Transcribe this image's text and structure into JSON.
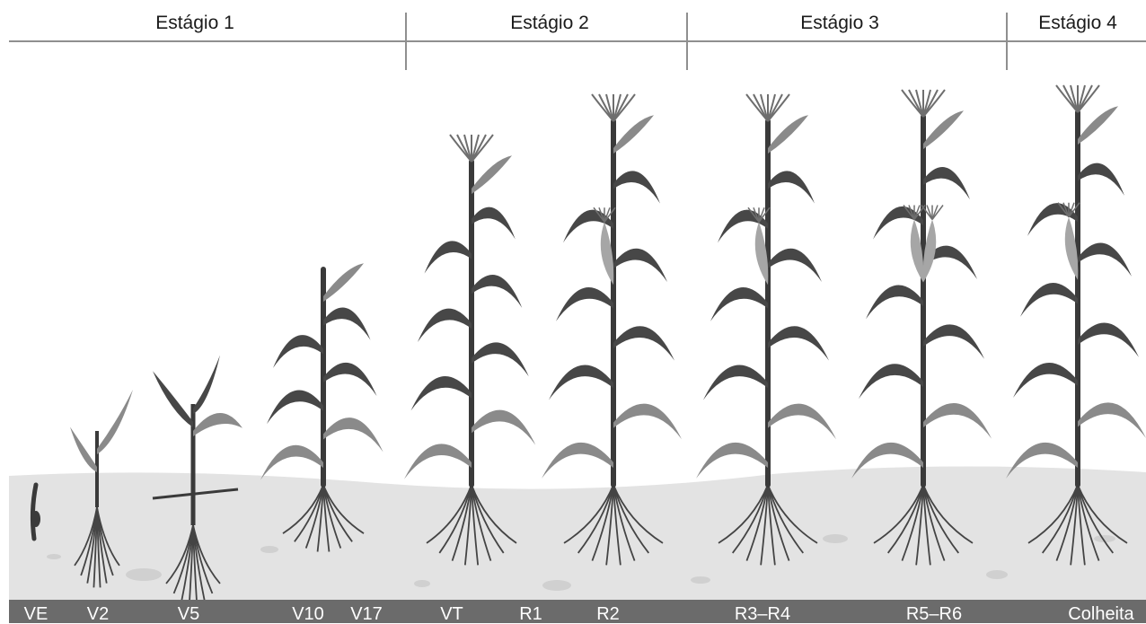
{
  "stages": [
    {
      "label": "Estágio 1"
    },
    {
      "label": "Estágio 2"
    },
    {
      "label": "Estágio 3"
    },
    {
      "label": "Estágio 4"
    }
  ],
  "growth_labels": [
    {
      "text": "VE"
    },
    {
      "text": "V2"
    },
    {
      "text": "V5"
    },
    {
      "text": "V10"
    },
    {
      "text": "V17"
    },
    {
      "text": "VT"
    },
    {
      "text": "R1"
    },
    {
      "text": "R2"
    },
    {
      "text": "R3–R4"
    },
    {
      "text": "R5–R6"
    },
    {
      "text": "Colheita"
    }
  ],
  "colors": {
    "stem": "#3a3a3a",
    "leaf_dark": "#474747",
    "leaf_light": "#8a8a8a",
    "ear": "#a6a6a6",
    "tassel": "#6e6e6e",
    "soil": "#e3e3e3",
    "root": "#444444"
  }
}
